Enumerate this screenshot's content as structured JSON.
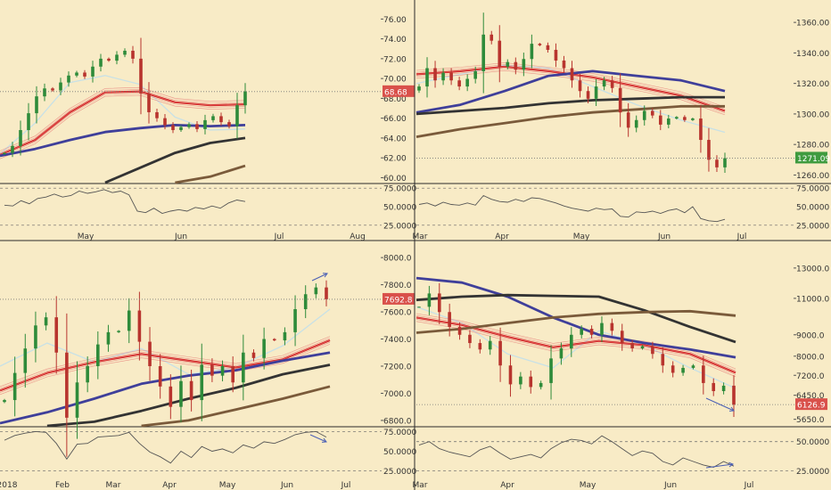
{
  "chart_data": [
    {
      "type": "candlestick",
      "panel": "top-left",
      "x_labels": [
        "May",
        "Jun",
        "Jul",
        "Aug"
      ],
      "y_ticks": [
        "60.00",
        "62.00",
        "64.00",
        "66.00",
        "68.00",
        "70.00",
        "72.00",
        "74.00",
        "76.00"
      ],
      "ylim": [
        59.5,
        77.2
      ],
      "last_price": "68.68",
      "last_value": 68.68,
      "price_path": [
        62.5,
        63.2,
        64.8,
        66.5,
        68.2,
        69.0,
        68.8,
        69.6,
        70.3,
        70.6,
        70.2,
        71.2,
        72.0,
        71.8,
        72.4,
        72.8,
        72.0,
        68.5,
        66.6,
        66.0,
        65.3,
        64.8,
        65.1,
        65.4,
        64.9,
        65.8,
        66.2,
        65.6,
        65.2,
        67.3,
        68.7
      ],
      "ma_lines": [
        {
          "name": "",
          "color": "#c8e1e6",
          "values": [
            62.4,
            65.5,
            69.6,
            70.3,
            69.4,
            66.1,
            64.8,
            64.9
          ]
        },
        {
          "name": "",
          "color": "#d42b2b",
          "values": [
            62.3,
            63.8,
            66.6,
            68.6,
            68.7,
            67.6,
            67.3,
            67.4
          ]
        },
        {
          "name": "",
          "color": "#3f3f9a",
          "values": [
            62.2,
            62.9,
            63.8,
            64.6,
            65.0,
            65.3,
            65.2,
            65.3
          ]
        },
        {
          "name": "",
          "color": "#333333",
          "values": [
            59.5,
            61.0,
            62.5,
            63.5,
            64.0
          ]
        },
        {
          "name": "",
          "color": "#7a5a3a",
          "values": [
            59.5,
            60.1,
            61.2
          ]
        }
      ],
      "osc_ticks": [
        "25.0000",
        "50.0000",
        "75.0000"
      ],
      "osc_range": [
        20,
        80
      ],
      "osc_values": [
        52,
        51,
        58,
        54,
        61,
        63,
        67,
        63,
        65,
        71,
        68,
        70,
        73,
        69,
        71,
        66,
        44,
        42,
        48,
        41,
        44,
        46,
        44,
        49,
        47,
        51,
        48,
        55,
        59,
        57
      ]
    },
    {
      "type": "candlestick",
      "panel": "top-right",
      "x_labels": [
        "Mar",
        "Apr",
        "May",
        "Jun",
        "Jul"
      ],
      "y_ticks": [
        "1260.00",
        "1280.00",
        "1300.00",
        "1320.00",
        "1340.00",
        "1360.00"
      ],
      "ylim": [
        1255,
        1370
      ],
      "last_price": "1271.09",
      "last_value": 1271.09,
      "price_path": [
        1318,
        1330,
        1322,
        1327,
        1322,
        1318,
        1323,
        1328,
        1352,
        1348,
        1331,
        1334,
        1329,
        1336,
        1346,
        1345,
        1342,
        1335,
        1330,
        1322,
        1315,
        1310,
        1318,
        1322,
        1317,
        1301,
        1291,
        1296,
        1302,
        1299,
        1293,
        1297,
        1298,
        1296,
        1297,
        1283,
        1270,
        1265,
        1271
      ],
      "ma_lines": [
        {
          "name": "",
          "color": "#c8e1e6",
          "values": [
            1320,
            1326,
            1332,
            1330,
            1318,
            1306,
            1296,
            1288
          ]
        },
        {
          "name": "",
          "color": "#d42b2b",
          "values": [
            1326,
            1328,
            1331,
            1328,
            1324,
            1318,
            1312,
            1302
          ]
        },
        {
          "name": "",
          "color": "#3f3f9a",
          "values": [
            1301,
            1306,
            1315,
            1325,
            1328,
            1325,
            1322,
            1315
          ]
        },
        {
          "name": "",
          "color": "#333333",
          "values": [
            1300,
            1302,
            1304,
            1307,
            1309,
            1310,
            1311,
            1311
          ]
        },
        {
          "name": "",
          "color": "#7a5a3a",
          "values": [
            1285,
            1290,
            1294,
            1298,
            1301,
            1303,
            1305,
            1305
          ]
        }
      ],
      "osc_ticks": [
        "25.0000",
        "50.0000",
        "75.0000"
      ],
      "osc_range": [
        20,
        80
      ],
      "osc_values": [
        53,
        55,
        51,
        56,
        53,
        52,
        55,
        52,
        65,
        60,
        57,
        56,
        60,
        57,
        62,
        61,
        58,
        55,
        51,
        48,
        46,
        44,
        48,
        46,
        47,
        37,
        36,
        43,
        42,
        44,
        41,
        45,
        47,
        42,
        50,
        34,
        31,
        30,
        33
      ]
    },
    {
      "type": "candlestick",
      "panel": "bottom-left",
      "x_labels": [
        "2018",
        "Feb",
        "Mar",
        "Apr",
        "May",
        "Jun",
        "Jul"
      ],
      "y_ticks": [
        "6800.0",
        "7000.0",
        "7200.0",
        "7400.0",
        "7600.0",
        "7800.0",
        "8000.0"
      ],
      "ylim": [
        6760,
        8060
      ],
      "last_price": "7692.8",
      "last_value": 7692.8,
      "price_path": [
        6950,
        7150,
        7330,
        7500,
        7560,
        7300,
        6820,
        7080,
        7200,
        7360,
        7450,
        7460,
        7610,
        7380,
        7200,
        7050,
        6900,
        7090,
        6950,
        7210,
        7130,
        7200,
        7080,
        7300,
        7260,
        7400,
        7390,
        7450,
        7620,
        7730,
        7780,
        7693
      ],
      "ma_lines": [
        {
          "name": "",
          "color": "#c8e1e6",
          "values": [
            7200,
            7370,
            7230,
            7330,
            7140,
            7190,
            7350,
            7620
          ]
        },
        {
          "name": "",
          "color": "#d42b2b",
          "values": [
            7020,
            7150,
            7230,
            7290,
            7240,
            7190,
            7250,
            7390
          ]
        },
        {
          "name": "",
          "color": "#3f3f9a",
          "values": [
            6780,
            6860,
            6960,
            7070,
            7130,
            7170,
            7240,
            7300
          ]
        },
        {
          "name": "",
          "color": "#333333",
          "values": [
            6760,
            6790,
            6870,
            6960,
            7040,
            7140,
            7210
          ]
        },
        {
          "name": "",
          "color": "#7a5a3a",
          "values": [
            6760,
            6800,
            6880,
            6960,
            7050
          ]
        }
      ],
      "osc_ticks": [
        "25.0000",
        "50.0000",
        "75.0000"
      ],
      "osc_range": [
        20,
        80
      ],
      "osc_values": [
        64,
        70,
        73,
        75,
        74,
        60,
        40,
        59,
        60,
        68,
        69,
        70,
        74,
        60,
        49,
        43,
        35,
        50,
        42,
        56,
        50,
        53,
        48,
        58,
        54,
        62,
        60,
        65,
        71,
        74,
        75,
        68
      ]
    },
    {
      "type": "candlestick",
      "panel": "bottom-right",
      "x_labels": [
        "Mar",
        "Apr",
        "May",
        "Jun",
        "Jul"
      ],
      "y_ticks": [
        "5650.0",
        "6450.0",
        "7200.0",
        "8000.0",
        "9000.0",
        "11000.0",
        "13000.0"
      ],
      "y_tick_values": [
        5650,
        6450,
        7200,
        8000,
        9000,
        11000,
        13000
      ],
      "y_scale": "log",
      "ylim": [
        5450,
        14400
      ],
      "last_price": "6126.9",
      "last_value": 6126.9,
      "price_path": [
        10500,
        11300,
        10200,
        9400,
        9000,
        8600,
        8300,
        8700,
        7600,
        6850,
        7150,
        6750,
        6900,
        7900,
        8350,
        9000,
        9300,
        9000,
        9600,
        9200,
        8600,
        8350,
        8450,
        8100,
        7600,
        7300,
        7500,
        7600,
        6900,
        6600,
        6800,
        6127
      ],
      "ma_lines": [
        {
          "name": "",
          "color": "#c8e1e6",
          "values": [
            10500,
            9600,
            8100,
            7500,
            9200,
            8500,
            7500,
            6700
          ]
        },
        {
          "name": "",
          "color": "#d42b2b",
          "values": [
            9900,
            9500,
            8900,
            8400,
            8700,
            8500,
            8100,
            7300
          ]
        },
        {
          "name": "",
          "color": "#3f3f9a",
          "values": [
            12300,
            12000,
            11100,
            9900,
            9000,
            8600,
            8300,
            7950
          ]
        },
        {
          "name": "",
          "color": "#333333",
          "values": [
            10900,
            11100,
            11200,
            11150,
            11100,
            10300,
            9400,
            8650
          ]
        },
        {
          "name": "",
          "color": "#7a5a3a",
          "values": [
            9100,
            9300,
            9600,
            9900,
            10100,
            10200,
            10250,
            10000
          ]
        }
      ],
      "osc_ticks": [
        "25.0000",
        "50.0000"
      ],
      "osc_range": [
        20,
        62
      ],
      "osc_values": [
        47,
        50,
        44,
        41,
        39,
        37,
        43,
        46,
        40,
        35,
        37,
        39,
        36,
        44,
        49,
        52,
        51,
        48,
        55,
        50,
        44,
        38,
        42,
        40,
        33,
        30,
        36,
        33,
        30,
        28,
        33,
        29
      ]
    }
  ]
}
